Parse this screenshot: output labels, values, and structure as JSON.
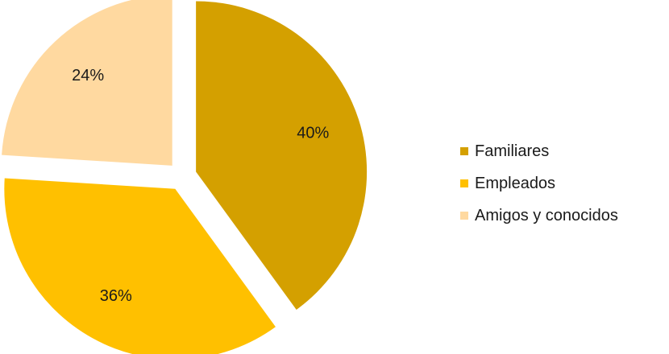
{
  "chart_data": {
    "type": "pie",
    "slices": [
      {
        "label": "Familiares",
        "value": 40,
        "value_label": "40%",
        "color": "#D4A000"
      },
      {
        "label": "Empleados",
        "value": 36,
        "value_label": "36%",
        "color": "#FFC000"
      },
      {
        "label": "Amigos y conocidos",
        "value": 24,
        "value_label": "24%",
        "color": "#FFD9A0"
      }
    ],
    "exploded": true,
    "legend_position": "right"
  }
}
